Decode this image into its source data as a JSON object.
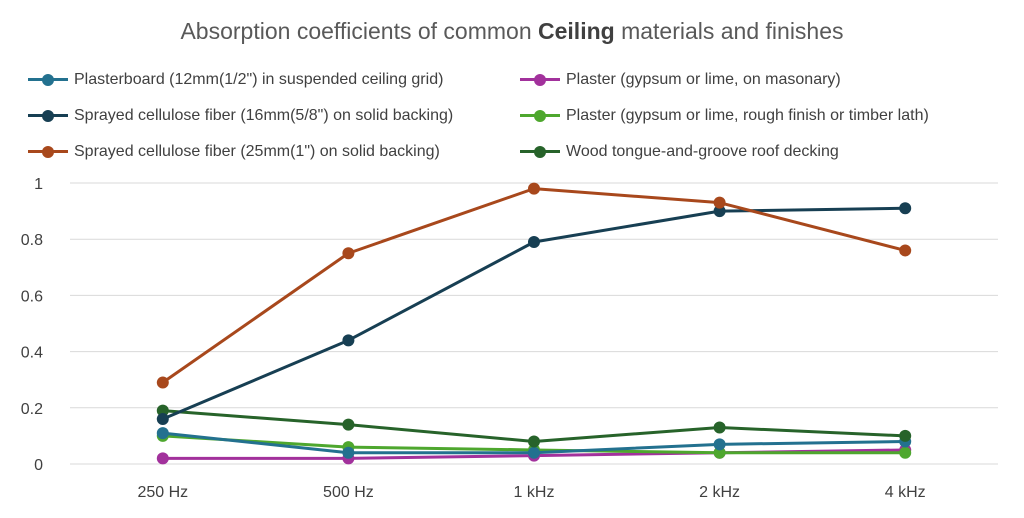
{
  "chart_data": {
    "type": "line",
    "title_prefix": "Absorption coefficients of common ",
    "title_bold": "Ceiling",
    "title_suffix": " materials and finishes",
    "categories": [
      "250 Hz",
      "500 Hz",
      "1 kHz",
      "2 kHz",
      "4 kHz"
    ],
    "ylim": [
      0,
      1
    ],
    "yticks": [
      0,
      0.2,
      0.4,
      0.6,
      0.8,
      1
    ],
    "ytick_labels": [
      "0",
      "0.2",
      "0.4",
      "0.6",
      "0.8",
      "1"
    ],
    "grid": true,
    "legend_position": "top",
    "series": [
      {
        "name": "Plasterboard (12mm(1/2\") in suspended ceiling grid)",
        "color": "#23718f",
        "values": [
          0.11,
          0.04,
          0.04,
          0.07,
          0.08
        ]
      },
      {
        "name": "Sprayed cellulose fiber (16mm(5/8\") on solid backing)",
        "color": "#173f53",
        "values": [
          0.16,
          0.44,
          0.79,
          0.9,
          0.91
        ]
      },
      {
        "name": "Sprayed cellulose fiber (25mm(1\") on solid backing)",
        "color": "#a8481c",
        "values": [
          0.29,
          0.75,
          0.98,
          0.93,
          0.76
        ]
      },
      {
        "name": "Plaster (gypsum or lime, on masonary)",
        "color": "#a2319c",
        "values": [
          0.02,
          0.02,
          0.03,
          0.04,
          0.05
        ]
      },
      {
        "name": "Plaster (gypsum or lime, rough finish or timber lath)",
        "color": "#4ea72e",
        "values": [
          0.1,
          0.06,
          0.05,
          0.04,
          0.04
        ]
      },
      {
        "name": "Wood tongue-and-groove roof decking",
        "color": "#27632a",
        "values": [
          0.19,
          0.14,
          0.08,
          0.13,
          0.1
        ]
      }
    ],
    "legend_order": [
      0,
      3,
      1,
      4,
      2,
      5
    ]
  }
}
